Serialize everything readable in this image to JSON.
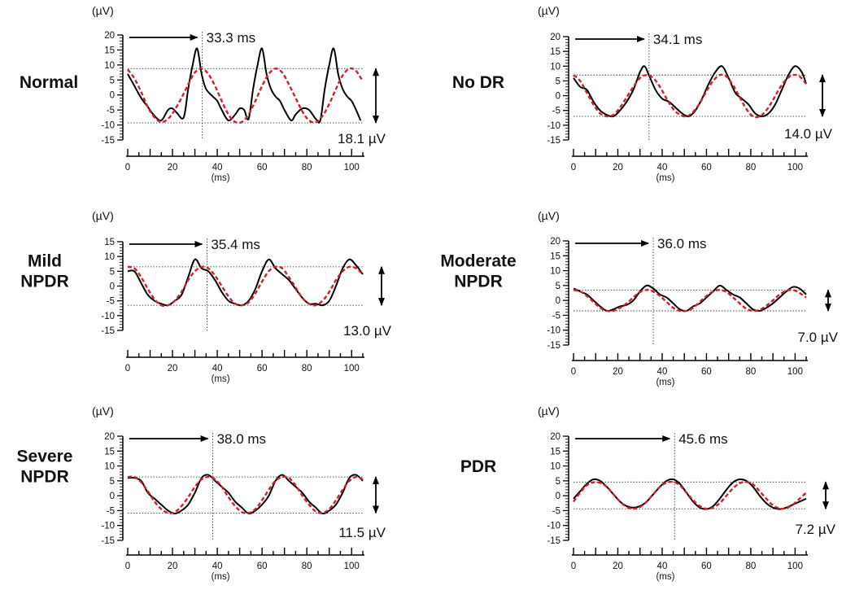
{
  "chart_data": [
    {
      "type": "line",
      "group_label": [
        "Normal"
      ],
      "y_unit": "(µV)",
      "x_unit": "(ms)",
      "xlim": [
        0,
        105
      ],
      "ylim": [
        -15,
        20
      ],
      "y_ticks": [
        20,
        15,
        10,
        5,
        0,
        -5,
        -10,
        -15
      ],
      "x_ticks": [
        0,
        20,
        40,
        60,
        80,
        100
      ],
      "peak_time_label": "33.3 ms",
      "peak_time": 33.3,
      "amplitude_label": "18.1 µV",
      "amplitude": 18.1,
      "fit_max": 8.8,
      "fit_min": -9.3,
      "series": [
        {
          "color": "#000000",
          "style": "solid",
          "x": [
            0,
            3,
            6,
            9,
            12,
            15,
            18,
            20,
            22,
            25,
            27,
            29,
            31,
            33,
            35,
            38,
            40,
            42,
            45,
            48,
            50,
            52,
            54,
            56,
            58,
            60,
            62,
            64,
            66,
            68,
            70,
            73,
            75,
            78,
            81,
            84,
            86,
            88,
            90,
            92,
            94,
            96,
            98,
            100,
            102,
            104
          ],
          "y": [
            7,
            3,
            -1,
            -4,
            -7,
            -8.5,
            -5,
            -4.5,
            -6,
            -7.5,
            2,
            10,
            15.5,
            7,
            2,
            -0.5,
            -2,
            -5,
            -8.5,
            -6.5,
            -4.5,
            -5,
            -8,
            2,
            10,
            15.5,
            7,
            2,
            -0.5,
            -2,
            -5,
            -8.5,
            -6.5,
            -4.5,
            -5,
            -8,
            -8.5,
            2,
            10,
            15.5,
            7,
            2,
            -0.5,
            -2,
            -5,
            -8.5
          ]
        },
        {
          "color": "#d21f2b",
          "style": "dashed",
          "x": [
            0,
            3,
            6,
            9,
            12,
            15,
            18,
            21,
            24,
            27,
            30,
            33,
            36,
            39,
            42,
            45,
            48,
            51,
            54,
            57,
            60,
            63,
            66,
            69,
            72,
            75,
            78,
            81,
            84,
            87,
            90,
            93,
            96,
            99,
            102,
            105
          ],
          "y": [
            8.5,
            5.5,
            1,
            -4,
            -7.5,
            -9,
            -8,
            -5,
            -1,
            3.5,
            7.5,
            8.8,
            7,
            3,
            -2,
            -6.5,
            -9,
            -9,
            -6.5,
            -2,
            3,
            7,
            8.8,
            7.5,
            3.5,
            -1,
            -5.5,
            -8.5,
            -9,
            -7,
            -3,
            2,
            6.5,
            8.8,
            8,
            4.5
          ]
        }
      ]
    },
    {
      "type": "line",
      "group_label": [
        "No DR"
      ],
      "y_unit": "(µV)",
      "x_unit": "(ms)",
      "xlim": [
        0,
        105
      ],
      "ylim": [
        -15,
        20
      ],
      "y_ticks": [
        20,
        15,
        10,
        5,
        0,
        -5,
        -10,
        -15
      ],
      "x_ticks": [
        0,
        20,
        40,
        60,
        80,
        100
      ],
      "peak_time_label": "34.1 ms",
      "peak_time": 34.1,
      "amplitude_label": "14.0 µV",
      "amplitude": 14.0,
      "fit_max": 7,
      "fit_min": -7,
      "series": [
        {
          "color": "#000000",
          "style": "solid",
          "x": [
            0,
            3,
            6,
            9,
            12,
            15,
            18,
            21,
            24,
            27,
            30,
            32,
            34,
            37,
            40,
            43,
            46,
            49,
            52,
            55,
            58,
            61,
            64,
            67,
            70,
            73,
            76,
            79,
            82,
            85,
            88,
            91,
            94,
            97,
            100,
            103,
            105
          ],
          "y": [
            6,
            3,
            2,
            -2,
            -5,
            -6.5,
            -7,
            -5,
            -2,
            2,
            8,
            10,
            7,
            2,
            -1,
            -2,
            -4,
            -6,
            -7,
            -5,
            -1,
            4,
            8,
            10,
            6,
            1,
            -1,
            -3,
            -6,
            -7,
            -6,
            -3,
            2,
            7,
            10,
            8,
            4
          ]
        },
        {
          "color": "#d21f2b",
          "style": "dashed",
          "x": [
            0,
            3,
            6,
            9,
            12,
            15,
            18,
            21,
            24,
            27,
            30,
            33,
            36,
            39,
            42,
            45,
            48,
            51,
            54,
            57,
            60,
            63,
            66,
            69,
            72,
            75,
            78,
            81,
            84,
            87,
            90,
            93,
            96,
            99,
            102,
            105
          ],
          "y": [
            7,
            5,
            1,
            -3,
            -6,
            -7,
            -6.5,
            -4,
            -0.5,
            3,
            6,
            7,
            6,
            3,
            -1,
            -4.5,
            -6.5,
            -7,
            -5.5,
            -2.5,
            1.5,
            5,
            7,
            6.5,
            3.5,
            -0.5,
            -4.5,
            -7,
            -7,
            -5,
            -1.5,
            2.5,
            5.5,
            7,
            6.5,
            4
          ]
        }
      ]
    },
    {
      "type": "line",
      "group_label": [
        "Mild",
        "NPDR"
      ],
      "y_unit": "(µV)",
      "x_unit": "(ms)",
      "xlim": [
        0,
        105
      ],
      "ylim": [
        -15,
        15
      ],
      "y_ticks": [
        15,
        10,
        5,
        0,
        -5,
        -10,
        -15
      ],
      "x_ticks": [
        0,
        20,
        40,
        60,
        80,
        100
      ],
      "peak_time_label": "35.4 ms",
      "peak_time": 35.4,
      "amplitude_label": "13.0 µV",
      "amplitude": 13.0,
      "fit_max": 6.5,
      "fit_min": -6.5,
      "series": [
        {
          "color": "#000000",
          "style": "solid",
          "x": [
            0,
            3,
            6,
            9,
            12,
            15,
            18,
            21,
            24,
            27,
            30,
            33,
            36,
            39,
            42,
            45,
            48,
            51,
            54,
            57,
            60,
            63,
            66,
            69,
            72,
            75,
            78,
            81,
            84,
            87,
            90,
            93,
            96,
            99,
            102,
            105
          ],
          "y": [
            5,
            5,
            1,
            -3,
            -5,
            -6,
            -6.5,
            -5,
            -3,
            3,
            9,
            6,
            5,
            2,
            -2,
            -5,
            -6,
            -6.5,
            -5,
            -1,
            5,
            9,
            6,
            4,
            2,
            -1,
            -4,
            -6,
            -6,
            -6.5,
            -5,
            0,
            6,
            9,
            7,
            4
          ]
        },
        {
          "color": "#d21f2b",
          "style": "dashed",
          "x": [
            0,
            3,
            6,
            9,
            12,
            15,
            18,
            21,
            24,
            27,
            30,
            33,
            36,
            39,
            42,
            45,
            48,
            51,
            54,
            57,
            60,
            63,
            66,
            69,
            72,
            75,
            78,
            81,
            84,
            87,
            90,
            93,
            96,
            99,
            102,
            105
          ],
          "y": [
            6.5,
            6,
            3,
            -1,
            -4.5,
            -6.5,
            -6.5,
            -5,
            -2,
            2,
            5,
            6.5,
            6,
            3.5,
            0,
            -3.5,
            -6,
            -6.5,
            -5.5,
            -2.5,
            1.5,
            5,
            6.5,
            6,
            3,
            -0.5,
            -4,
            -6,
            -6.5,
            -5,
            -2,
            2,
            5,
            6.5,
            6,
            4
          ]
        }
      ]
    },
    {
      "type": "line",
      "group_label": [
        "Moderate",
        "NPDR"
      ],
      "y_unit": "(µV)",
      "x_unit": "(ms)",
      "xlim": [
        0,
        105
      ],
      "ylim": [
        -15,
        20
      ],
      "y_ticks": [
        20,
        15,
        10,
        5,
        0,
        -5,
        -10,
        -15
      ],
      "x_ticks": [
        0,
        20,
        40,
        60,
        80,
        100
      ],
      "peak_time_label": "36.0 ms",
      "peak_time": 36.0,
      "amplitude_label": "7.0 µV",
      "amplitude": 7.0,
      "fit_max": 3.5,
      "fit_min": -3.5,
      "series": [
        {
          "color": "#000000",
          "style": "solid",
          "x": [
            0,
            3,
            6,
            9,
            12,
            15,
            18,
            21,
            24,
            27,
            30,
            33,
            36,
            39,
            42,
            45,
            48,
            51,
            54,
            57,
            60,
            63,
            66,
            69,
            72,
            75,
            78,
            81,
            84,
            87,
            90,
            93,
            96,
            99,
            102,
            105
          ],
          "y": [
            4,
            3,
            2,
            0,
            -2,
            -3.5,
            -3,
            -2,
            -1.5,
            0,
            3,
            5,
            4,
            2,
            1,
            -1,
            -3,
            -3.5,
            -2,
            -1,
            1,
            3,
            5,
            3.5,
            2,
            1,
            -1,
            -3,
            -3.5,
            -2.5,
            -1,
            1,
            3,
            4.5,
            4,
            2
          ]
        },
        {
          "color": "#d21f2b",
          "style": "dashed",
          "x": [
            0,
            3,
            6,
            9,
            12,
            15,
            18,
            21,
            24,
            27,
            30,
            33,
            36,
            39,
            42,
            45,
            48,
            51,
            54,
            57,
            60,
            63,
            66,
            69,
            72,
            75,
            78,
            81,
            84,
            87,
            90,
            93,
            96,
            99,
            102,
            105
          ],
          "y": [
            3.5,
            3,
            1.5,
            -0.5,
            -2.5,
            -3.5,
            -3.5,
            -2.5,
            -1,
            1,
            2.8,
            3.5,
            3,
            1.5,
            -0.5,
            -2.5,
            -3.5,
            -3.5,
            -2.5,
            -0.5,
            1.5,
            3,
            3.5,
            2.8,
            1,
            -1,
            -2.8,
            -3.5,
            -3.2,
            -1.8,
            0,
            2,
            3.2,
            3.5,
            2.5,
            1
          ]
        }
      ]
    },
    {
      "type": "line",
      "group_label": [
        "Severe",
        "NPDR"
      ],
      "y_unit": "(µV)",
      "x_unit": "(ms)",
      "xlim": [
        0,
        105
      ],
      "ylim": [
        -15,
        20
      ],
      "y_ticks": [
        20,
        15,
        10,
        5,
        0,
        -5,
        -10,
        -15
      ],
      "x_ticks": [
        0,
        20,
        40,
        60,
        80,
        100
      ],
      "peak_time_label": "38.0 ms",
      "peak_time": 38.0,
      "amplitude_label": "11.5 µV",
      "amplitude": 11.5,
      "fit_max": 6.3,
      "fit_min": -5.8,
      "series": [
        {
          "color": "#000000",
          "style": "solid",
          "x": [
            0,
            3,
            6,
            9,
            12,
            15,
            18,
            21,
            24,
            27,
            30,
            33,
            36,
            39,
            42,
            45,
            48,
            51,
            54,
            57,
            60,
            63,
            66,
            69,
            72,
            75,
            78,
            81,
            84,
            87,
            90,
            93,
            96,
            99,
            102,
            105
          ],
          "y": [
            6,
            6,
            5,
            1,
            -1,
            -3,
            -5,
            -6,
            -5,
            -3,
            1,
            6,
            7,
            5,
            3,
            1,
            -2,
            -4,
            -6,
            -5,
            -3,
            0,
            5,
            7,
            5,
            3,
            1,
            -2,
            -4,
            -6,
            -5,
            -3,
            1,
            6,
            7,
            5
          ]
        },
        {
          "color": "#d21f2b",
          "style": "dashed",
          "x": [
            0,
            3,
            6,
            9,
            12,
            15,
            18,
            21,
            24,
            27,
            30,
            33,
            36,
            39,
            42,
            45,
            48,
            51,
            54,
            57,
            60,
            63,
            66,
            69,
            72,
            75,
            78,
            81,
            84,
            87,
            90,
            93,
            96,
            99,
            102,
            105
          ],
          "y": [
            6.3,
            6.3,
            4.5,
            1.5,
            -2,
            -4.5,
            -5.8,
            -5.5,
            -3.5,
            -0.5,
            3,
            5.5,
            6.3,
            5.5,
            3,
            -0.5,
            -3.5,
            -5.5,
            -5.8,
            -4.5,
            -1.5,
            2,
            5,
            6.3,
            6,
            3.5,
            0,
            -3,
            -5.3,
            -5.8,
            -4.5,
            -1.5,
            2,
            5,
            6.3,
            5.5
          ]
        }
      ]
    },
    {
      "type": "line",
      "group_label": [
        "PDR"
      ],
      "y_unit": "(µV)",
      "x_unit": "(ms)",
      "xlim": [
        0,
        105
      ],
      "ylim": [
        -15,
        20
      ],
      "y_ticks": [
        20,
        15,
        10,
        5,
        0,
        -5,
        -10,
        -15
      ],
      "x_ticks": [
        0,
        20,
        40,
        60,
        80,
        100
      ],
      "peak_time_label": "45.6 ms",
      "peak_time": 45.6,
      "amplitude_label": "7.2 µV",
      "amplitude": 7.2,
      "fit_max": 4.6,
      "fit_min": -4.4,
      "series": [
        {
          "color": "#000000",
          "style": "solid",
          "x": [
            0,
            3,
            6,
            9,
            12,
            15,
            18,
            21,
            24,
            27,
            30,
            33,
            36,
            39,
            42,
            45,
            48,
            51,
            54,
            57,
            60,
            63,
            66,
            69,
            72,
            75,
            78,
            81,
            84,
            87,
            90,
            93,
            96,
            99,
            102,
            105
          ],
          "y": [
            -1,
            1.5,
            4,
            5.5,
            5,
            3,
            0.5,
            -2,
            -3.5,
            -4,
            -3.5,
            -2,
            0.5,
            3,
            5,
            5.5,
            4,
            1,
            -2,
            -4,
            -4.5,
            -3.5,
            -1,
            2,
            4.5,
            5.5,
            5,
            3,
            0,
            -2.5,
            -4,
            -4.5,
            -4,
            -3,
            -2,
            -1
          ]
        },
        {
          "color": "#d21f2b",
          "style": "dashed",
          "x": [
            0,
            3,
            6,
            9,
            12,
            15,
            18,
            21,
            24,
            27,
            30,
            33,
            36,
            39,
            42,
            45,
            48,
            51,
            54,
            57,
            60,
            63,
            66,
            69,
            72,
            75,
            78,
            81,
            84,
            87,
            90,
            93,
            96,
            99,
            102,
            105
          ],
          "y": [
            -2,
            1,
            3.5,
            4.5,
            4.3,
            3,
            0.5,
            -2,
            -3.8,
            -4.4,
            -3.8,
            -2,
            0.5,
            3,
            4.4,
            4.6,
            3.5,
            1,
            -1.5,
            -3.5,
            -4.4,
            -4,
            -2.5,
            0,
            2.5,
            4.2,
            4.6,
            3.8,
            1.5,
            -1,
            -3.2,
            -4.3,
            -4.2,
            -3,
            -1,
            1
          ]
        }
      ]
    }
  ]
}
